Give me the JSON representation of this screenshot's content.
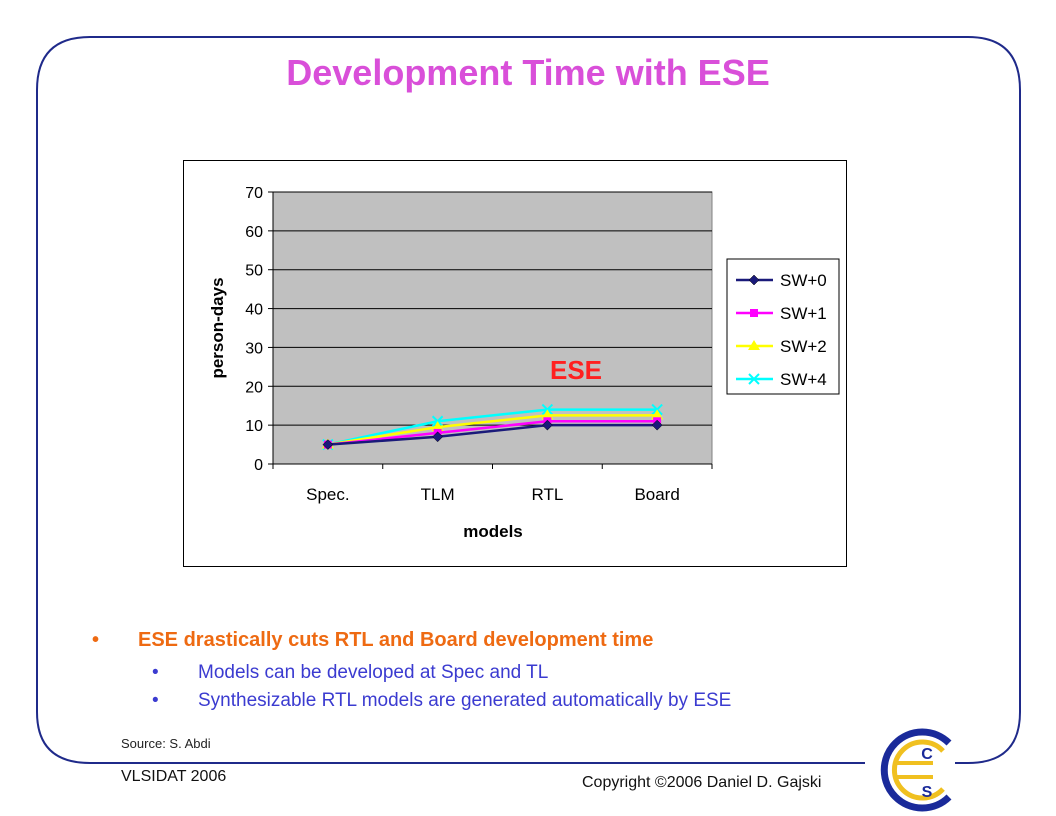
{
  "slide": {
    "title": "Development Time with ESE",
    "bullets": [
      {
        "level": 1,
        "text": "ESE drastically cuts RTL and Board development time",
        "marker": "•",
        "color": "#ee6a12"
      },
      {
        "level": 2,
        "text": "Models can be developed at Spec and TL",
        "marker": "•",
        "color": "#3b3bd0"
      },
      {
        "level": 2,
        "text": "Synthesizable RTL models are generated automatically by ESE",
        "marker": "•",
        "color": "#3b3bd0"
      }
    ],
    "source": "Source: S. Abdi",
    "venue": "VLSIDAT 2006",
    "copyright": "Copyright ©2006 Daniel D. Gajski",
    "logo_letters": [
      "C",
      "E",
      "C",
      "S"
    ],
    "title_color": "#d94fd9",
    "frame_color": "#1f2a8a"
  },
  "chart_data": {
    "type": "line",
    "categories": [
      "Spec.",
      "TLM",
      "RTL",
      "Board"
    ],
    "xlabel": "models",
    "ylabel": "person-days",
    "ylim": [
      0,
      70
    ],
    "yticks": [
      "0",
      "10",
      "20",
      "30",
      "40",
      "50",
      "60",
      "70"
    ],
    "grid": true,
    "legend_position": "right",
    "annotation": "ESE",
    "annotation_color": "#ff2020",
    "plot_bg": "#c0c0c0",
    "series": [
      {
        "name": "SW+0",
        "values": [
          5,
          7,
          10,
          10
        ],
        "color": "#1a1a7a",
        "marker": "diamond"
      },
      {
        "name": "SW+1",
        "values": [
          5,
          8,
          11,
          11
        ],
        "color": "#ff00ff",
        "marker": "square"
      },
      {
        "name": "SW+2",
        "values": [
          5,
          9.5,
          12.5,
          12.5
        ],
        "color": "#ffff00",
        "marker": "triangle"
      },
      {
        "name": "SW+4",
        "values": [
          5,
          11,
          14,
          14
        ],
        "color": "#00ffff",
        "marker": "x"
      }
    ]
  }
}
